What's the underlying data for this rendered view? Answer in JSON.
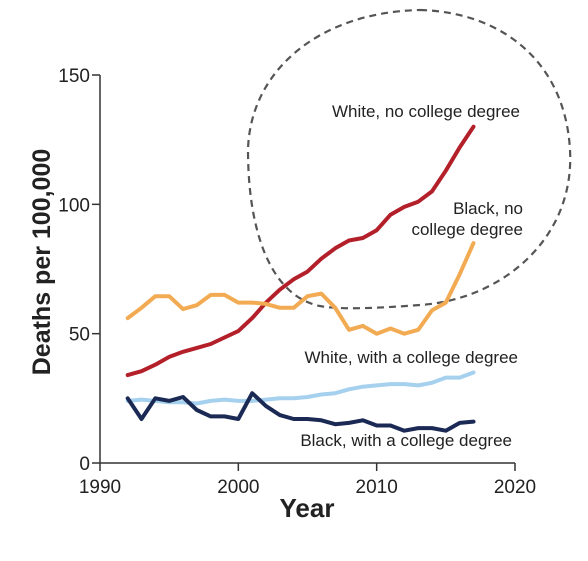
{
  "chart_data": {
    "type": "line",
    "title": "",
    "xlabel": "Year",
    "ylabel": "Deaths per 100,000",
    "xlim": [
      1990,
      2020
    ],
    "ylim": [
      0,
      150
    ],
    "x_ticks": [
      1990,
      2000,
      2010,
      2020
    ],
    "y_ticks": [
      0,
      50,
      100,
      150
    ],
    "grid": false,
    "legend": "labels placed beside lines",
    "annotation": "dashed circle around recent white and black no-college-degree lines",
    "x": [
      1992,
      1993,
      1994,
      1995,
      1996,
      1997,
      1998,
      1999,
      2000,
      2001,
      2002,
      2003,
      2004,
      2005,
      2006,
      2007,
      2008,
      2009,
      2010,
      2011,
      2012,
      2013,
      2014,
      2015,
      2016,
      2017
    ],
    "series": [
      {
        "name": "White, no college degree",
        "color": "#b3202a",
        "label_lines": [
          "White, no college degree"
        ],
        "values": [
          34,
          35.5,
          38,
          41,
          43,
          44.5,
          46,
          48.5,
          51,
          56,
          62,
          67,
          71,
          74,
          79,
          83,
          86,
          87,
          90,
          96,
          99,
          101,
          105,
          113,
          122,
          130
        ]
      },
      {
        "name": "Black, no college degree",
        "color": "#f2ab52",
        "label_lines": [
          "Black, no",
          "college degree"
        ],
        "values": [
          56,
          60,
          64.5,
          64.5,
          59.5,
          61,
          65,
          65,
          62,
          62,
          61.5,
          60,
          60,
          64.5,
          65.5,
          60,
          51.5,
          53,
          50,
          52,
          50,
          51.5,
          59,
          62,
          73,
          85
        ]
      },
      {
        "name": "White, with a college degree",
        "color": "#a6d1ee",
        "label_lines": [
          "White, with a college degree"
        ],
        "values": [
          24,
          24.5,
          24,
          23.5,
          23.5,
          23,
          24,
          24.5,
          24,
          24,
          24.5,
          25,
          25,
          25.5,
          26.5,
          27,
          28.5,
          29.5,
          30,
          30.5,
          30.5,
          30,
          31,
          33,
          33,
          35
        ]
      },
      {
        "name": "Black, with a college degree",
        "color": "#1b2a55",
        "label_lines": [
          "Black, with a college degree"
        ],
        "values": [
          25,
          17,
          25,
          24,
          25.5,
          20.5,
          18,
          18,
          17,
          27,
          22,
          18.5,
          17,
          17,
          16.5,
          15,
          15.5,
          16.5,
          14.5,
          14.5,
          12.5,
          13.5,
          13.5,
          12.5,
          15.5,
          16
        ]
      }
    ]
  }
}
